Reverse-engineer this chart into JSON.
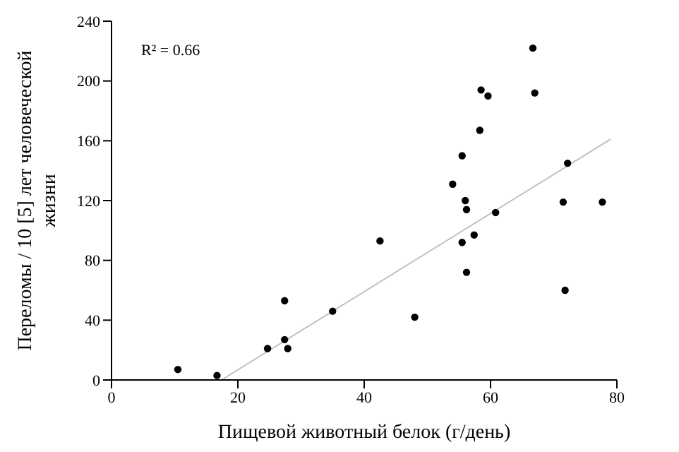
{
  "chart_data": {
    "type": "scatter",
    "xlabel": "Пищевой животный белок (г/день)",
    "ylabel": "Переломы / 10 [5] лет человеческой жизни",
    "annotations": [
      "R² = 0.66"
    ],
    "xlim": [
      0,
      80
    ],
    "xticks": [
      0,
      20,
      40,
      60,
      80
    ],
    "ylim": [
      0,
      240
    ],
    "yticks": [
      0,
      40,
      80,
      120,
      160,
      200,
      240
    ],
    "grid": false,
    "series": [
      {
        "marker": "circle",
        "color": "#000000",
        "x": [
          10.5,
          16.7,
          24.7,
          27.4,
          27.4,
          27.9,
          35,
          42.5,
          48,
          54,
          55.5,
          58.5,
          59.6,
          58.3,
          56,
          56.2,
          55.5,
          57.4,
          56.2,
          60.8,
          66.7,
          67,
          71.5,
          72.2,
          71.8,
          77.7
        ],
        "values": [
          7,
          3,
          21,
          27,
          53,
          21,
          46,
          93,
          42,
          131,
          150,
          194,
          190,
          167,
          120,
          114,
          92,
          97,
          72,
          112,
          222,
          192,
          119,
          145,
          60,
          119
        ]
      },
      {
        "type": "line",
        "color": "#c0c0c0",
        "x": [
          17.4,
          79
        ],
        "values": [
          0,
          161
        ]
      }
    ]
  }
}
